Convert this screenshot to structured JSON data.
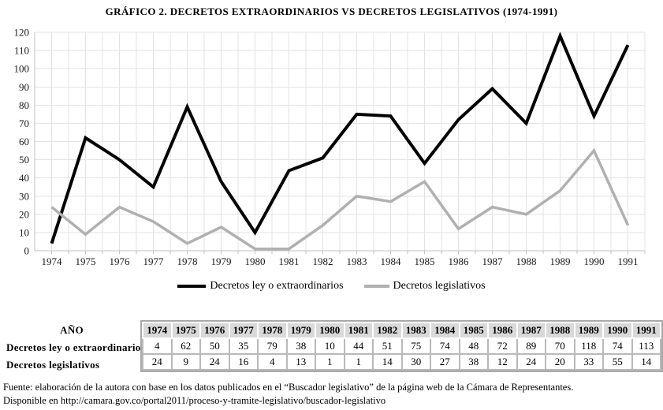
{
  "title": "GRÁFICO 2. DECRETOS EXTRAORDINARIOS VS DECRETOS LEGISLATIVOS (1974-1991)",
  "chart_data": {
    "type": "line",
    "categories": [
      "1974",
      "1975",
      "1976",
      "1977",
      "1978",
      "1979",
      "1980",
      "1981",
      "1982",
      "1983",
      "1984",
      "1985",
      "1986",
      "1987",
      "1988",
      "1989",
      "1990",
      "1991"
    ],
    "series": [
      {
        "name": "Decretos ley o extraordinarios",
        "color": "#000000",
        "stroke_width": 4,
        "values": [
          4,
          62,
          50,
          35,
          79,
          38,
          10,
          44,
          51,
          75,
          74,
          48,
          72,
          89,
          70,
          118,
          74,
          113
        ]
      },
      {
        "name": "Decretos legislativos",
        "color": "#b0b0b0",
        "stroke_width": 3.5,
        "values": [
          24,
          9,
          24,
          16,
          4,
          13,
          1,
          1,
          14,
          30,
          27,
          38,
          12,
          24,
          20,
          33,
          55,
          14
        ]
      }
    ],
    "ylim": [
      0,
      120
    ],
    "ytick_step": 10,
    "yticks": [
      0,
      10,
      20,
      30,
      40,
      50,
      60,
      70,
      80,
      90,
      100,
      110,
      120
    ],
    "grid": "horizontal major every 10; vertical minor every half category",
    "legend_position": "bottom-center",
    "markers": "none"
  },
  "table": {
    "corner_label": "AÑO",
    "years": [
      "1974",
      "1975",
      "1976",
      "1977",
      "1978",
      "1979",
      "1980",
      "1981",
      "1982",
      "1983",
      "1984",
      "1985",
      "1986",
      "1987",
      "1988",
      "1989",
      "1990",
      "1991"
    ],
    "rows": [
      {
        "label": "Decretos ley o extraordinarios",
        "values": [
          "4",
          "62",
          "50",
          "35",
          "79",
          "38",
          "10",
          "44",
          "51",
          "75",
          "74",
          "48",
          "72",
          "89",
          "70",
          "118",
          "74",
          "113"
        ]
      },
      {
        "label": "Decretos legislativos",
        "values": [
          "24",
          "9",
          "24",
          "16",
          "4",
          "13",
          "1",
          "1",
          "14",
          "30",
          "27",
          "38",
          "12",
          "24",
          "20",
          "33",
          "55",
          "14"
        ]
      }
    ]
  },
  "footer": {
    "line1": "Fuente: elaboración de la autora con base en los datos publicados en el “Buscador legislativo” de la página web de la Cámara de Representantes.",
    "line2": "Disponible en http://camara.gov.co/portal2011/proceso-y-tramite-legislativo/buscador-legislativo"
  },
  "colors": {
    "grid": "#e3e3e3",
    "axis": "#c2c2c2",
    "text": "#1a1a1a",
    "table_header_bg": "#d9d9d9",
    "table_border": "#a9a9a9",
    "series1": "#000000",
    "series2": "#b0b0b0"
  }
}
